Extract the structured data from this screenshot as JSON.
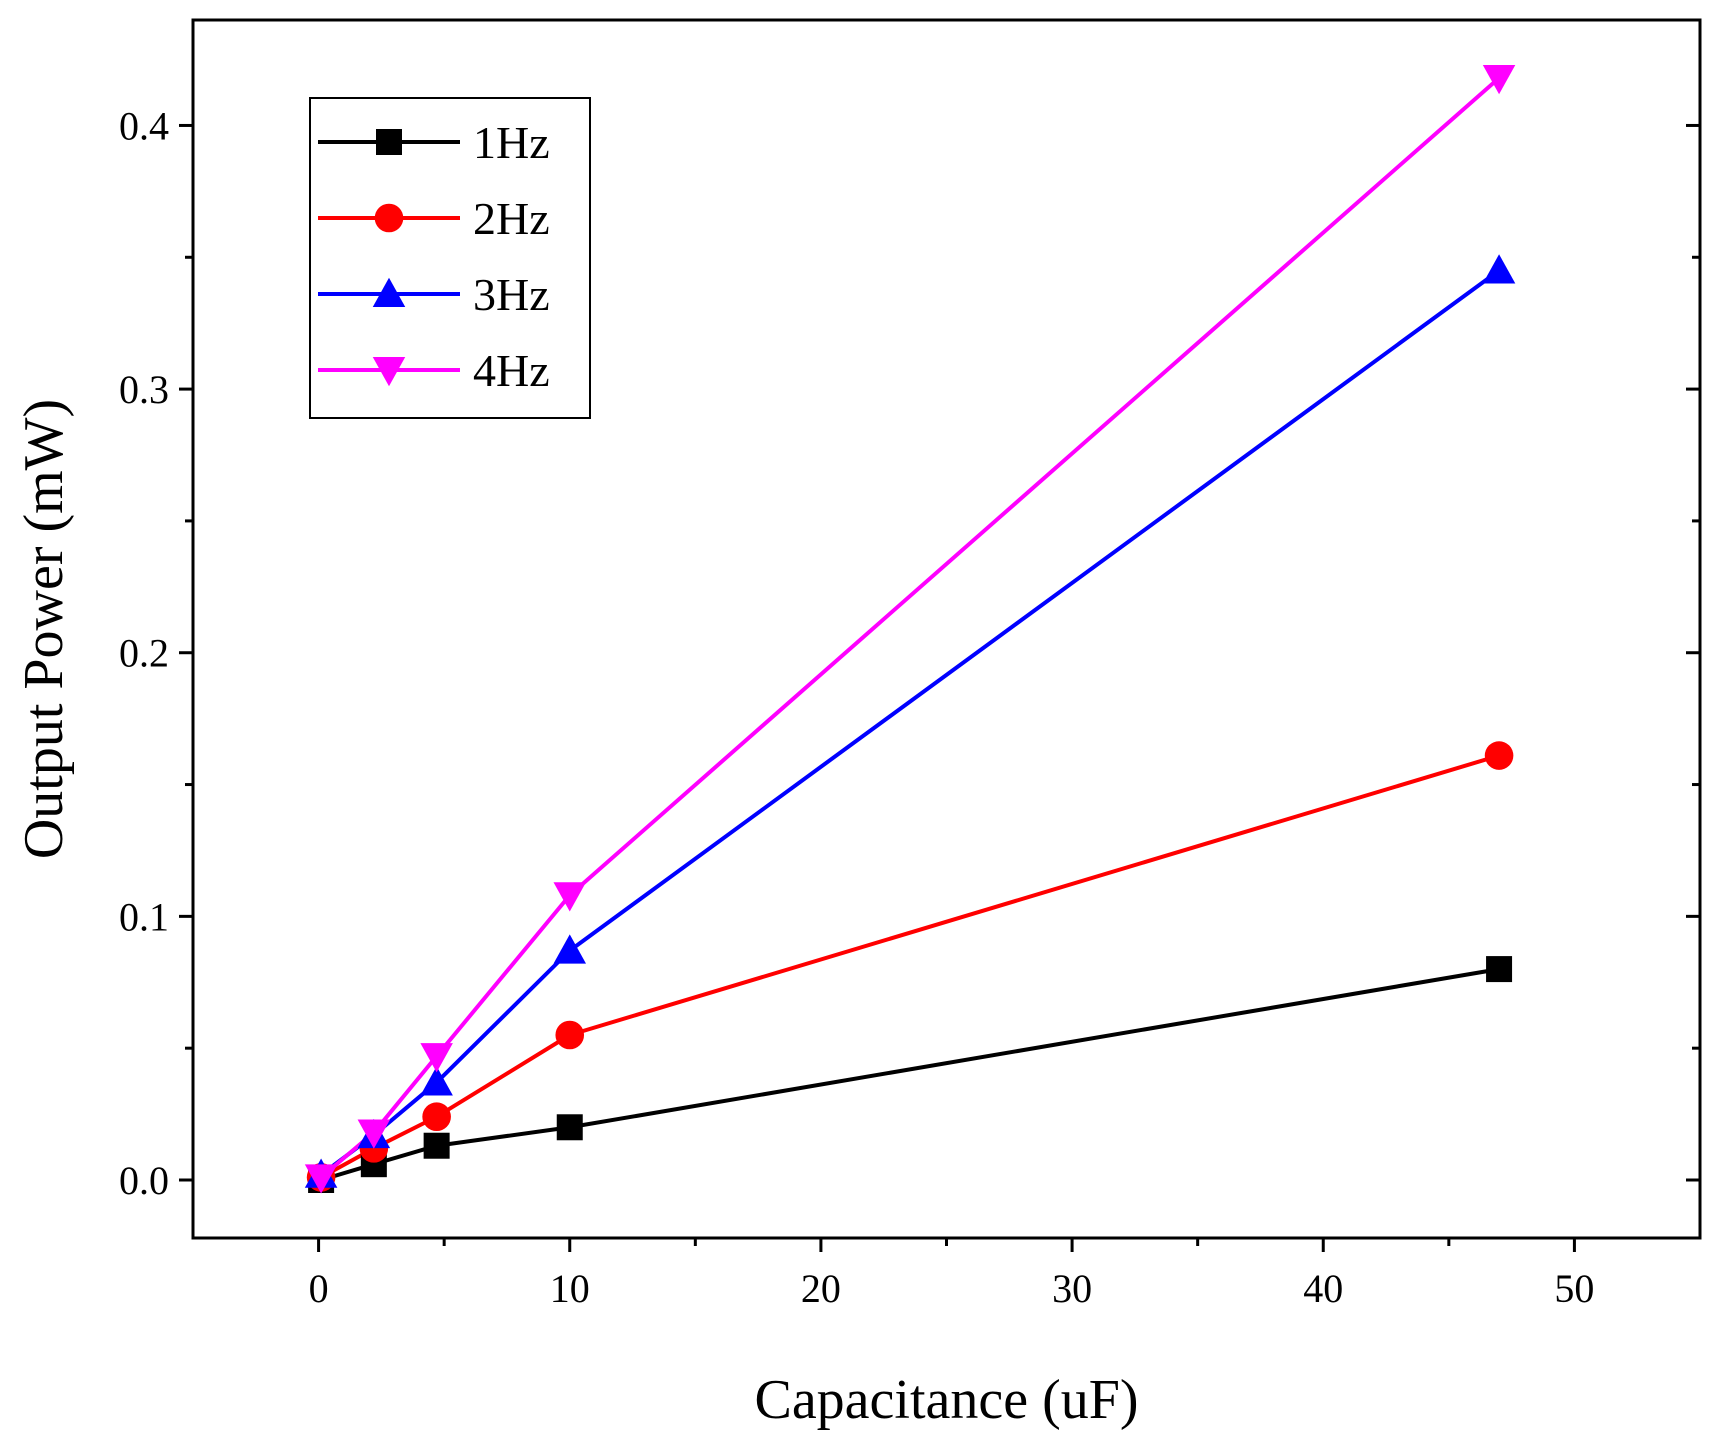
{
  "chart_data": {
    "type": "line",
    "title": "",
    "xlabel": "Capacitance (uF)",
    "ylabel": "Output Power (mW)",
    "xlim": [
      -5,
      55
    ],
    "ylim": [
      -0.022,
      0.44
    ],
    "x_major_ticks": [
      0,
      10,
      20,
      30,
      40,
      50
    ],
    "x_tick_labels": [
      "0",
      "10",
      "20",
      "30",
      "40",
      "50"
    ],
    "x_minor_ticks": [
      5,
      15,
      25,
      35,
      45
    ],
    "y_major_ticks": [
      0.0,
      0.1,
      0.2,
      0.3,
      0.4
    ],
    "y_tick_labels": [
      "0.0",
      "0.1",
      "0.2",
      "0.3",
      "0.4"
    ],
    "y_minor_ticks": [
      0.05,
      0.15,
      0.25,
      0.35
    ],
    "grid": false,
    "legend_position": "top-left",
    "x": [
      0.1,
      2.2,
      4.7,
      10,
      47
    ],
    "series": [
      {
        "name": "1Hz",
        "color": "#000000",
        "marker": "square",
        "values": [
          0.0,
          0.006,
          0.013,
          0.02,
          0.08
        ]
      },
      {
        "name": "2Hz",
        "color": "#ff0000",
        "marker": "circle",
        "values": [
          0.001,
          0.012,
          0.024,
          0.055,
          0.161
        ]
      },
      {
        "name": "3Hz",
        "color": "#0000ff",
        "marker": "triangle-up",
        "values": [
          0.002,
          0.017,
          0.037,
          0.087,
          0.345
        ]
      },
      {
        "name": "4Hz",
        "color": "#ff00ff",
        "marker": "triangle-down",
        "values": [
          0.001,
          0.018,
          0.047,
          0.108,
          0.418
        ]
      }
    ]
  }
}
